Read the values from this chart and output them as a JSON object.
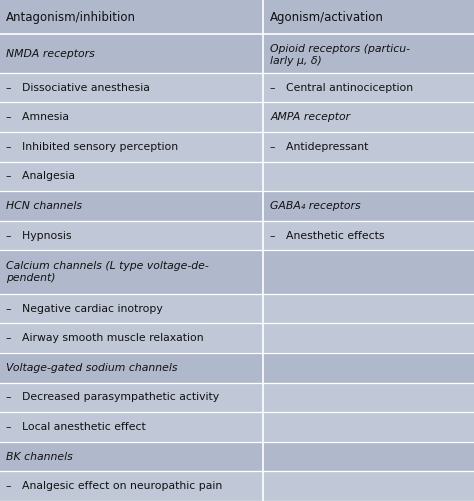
{
  "bg_color": "#b0b8cc",
  "col_bg": "#c0c8d8",
  "text_color": "#111111",
  "col1_header": "Antagonism/inhibition",
  "col2_header": "Agonism/activation",
  "col_split": 0.555,
  "rows": [
    {
      "left": "NMDA receptors",
      "right": "Opioid receptors (particu-\nlarly μ, δ)",
      "li": true,
      "ri": true,
      "type": "cat"
    },
    {
      "left": "–   Dissociative anesthesia",
      "right": "–   Central antinociception",
      "li": false,
      "ri": false,
      "type": "item"
    },
    {
      "left": "–   Amnesia",
      "right": "AMPA receptor",
      "li": false,
      "ri": true,
      "type": "item"
    },
    {
      "left": "–   Inhibited sensory perception",
      "right": "–   Antidepressant",
      "li": false,
      "ri": false,
      "type": "item"
    },
    {
      "left": "–   Analgesia",
      "right": "",
      "li": false,
      "ri": false,
      "type": "item"
    },
    {
      "left": "HCN channels",
      "right": "GABA₄ receptors",
      "li": true,
      "ri": true,
      "type": "cat"
    },
    {
      "left": "–   Hypnosis",
      "right": "–   Anesthetic effects",
      "li": false,
      "ri": false,
      "type": "item"
    },
    {
      "left": "Calcium channels (L type voltage-de-\npendent)",
      "right": "",
      "li": true,
      "ri": false,
      "type": "cat"
    },
    {
      "left": "–   Negative cardiac inotropy",
      "right": "",
      "li": false,
      "ri": false,
      "type": "item"
    },
    {
      "left": "–   Airway smooth muscle relaxation",
      "right": "",
      "li": false,
      "ri": false,
      "type": "item"
    },
    {
      "left": "Voltage-gated sodium channels",
      "right": "",
      "li": true,
      "ri": false,
      "type": "cat"
    },
    {
      "left": "–   Decreased parasympathetic activity",
      "right": "",
      "li": false,
      "ri": false,
      "type": "item"
    },
    {
      "left": "–   Local anesthetic effect",
      "right": "",
      "li": false,
      "ri": false,
      "type": "item"
    },
    {
      "left": "BK channels",
      "right": "",
      "li": true,
      "ri": false,
      "type": "cat"
    },
    {
      "left": "–   Analgesic effect on neuropathic pain",
      "right": "",
      "li": false,
      "ri": false,
      "type": "item"
    }
  ],
  "font_size": 7.8,
  "header_font_size": 8.5,
  "row_heights": [
    1.7,
    1.3,
    1.3,
    1.3,
    1.3,
    1.3,
    1.3,
    1.9,
    1.3,
    1.3,
    1.3,
    1.3,
    1.3,
    1.3,
    1.3
  ]
}
